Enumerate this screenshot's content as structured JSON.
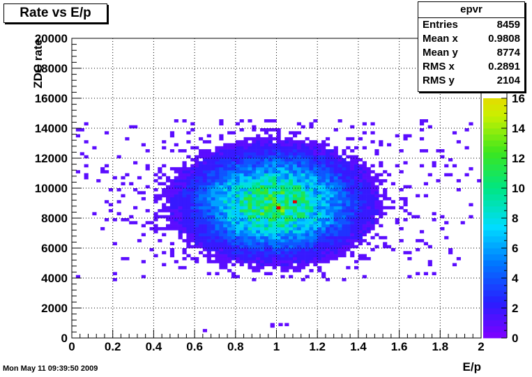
{
  "title": "Rate vs E/p",
  "timestamp": "Mon May 11 09:39:50 2009",
  "stats": {
    "name": "epvr",
    "rows": [
      {
        "label": "Entries",
        "value": "8459"
      },
      {
        "label": "Mean x",
        "value": "0.9808"
      },
      {
        "label": "Mean y",
        "value": "8774"
      },
      {
        "label": "RMS x",
        "value": "0.2891"
      },
      {
        "label": "RMS y",
        "value": "2104"
      }
    ]
  },
  "chart_data": {
    "type": "heatmap",
    "xlabel": "E/p",
    "ylabel": "ZDC rate",
    "xlim": [
      0,
      2
    ],
    "ylim": [
      0,
      20000
    ],
    "xticks": [
      "0",
      "0.2",
      "0.4",
      "0.6",
      "0.8",
      "1",
      "1.2",
      "1.4",
      "1.6",
      "1.8",
      "2"
    ],
    "yticks": [
      "0",
      "2000",
      "4000",
      "6000",
      "8000",
      "10000",
      "12000",
      "14000",
      "16000",
      "18000",
      "20000"
    ],
    "zlim": [
      0,
      20
    ],
    "zticks": [
      "0",
      "2",
      "4",
      "6",
      "8",
      "10",
      "12",
      "14",
      "16",
      "18"
    ],
    "grid": true,
    "bins": {
      "x": 100,
      "y": 100
    },
    "peak": {
      "x": 0.99,
      "y": 9000,
      "counts": 20
    },
    "spread": {
      "x_rms": 0.2891,
      "y_rms": 2104
    }
  }
}
